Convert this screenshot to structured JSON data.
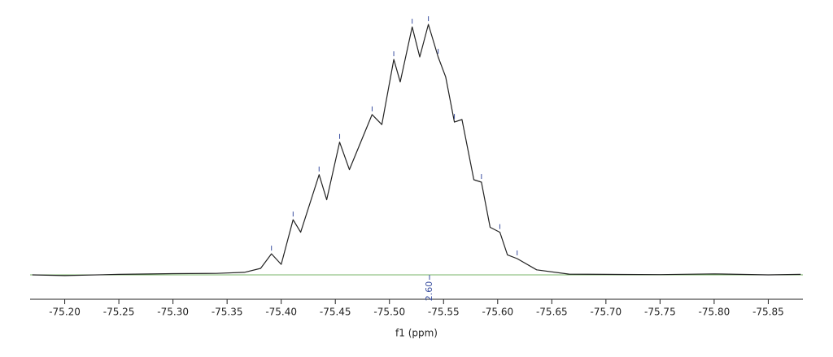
{
  "chart_data": {
    "type": "line",
    "x_label": "f1 (ppm)",
    "x": [
      -75.17,
      -75.2,
      -75.25,
      -75.3,
      -75.34,
      -75.366,
      -75.381,
      -75.391,
      -75.4,
      -75.411,
      -75.418,
      -75.435,
      -75.442,
      -75.454,
      -75.463,
      -75.484,
      -75.493,
      -75.504,
      -75.51,
      -75.521,
      -75.528,
      -75.536,
      -75.545,
      -75.552,
      -75.56,
      -75.567,
      -75.578,
      -75.585,
      -75.593,
      -75.602,
      -75.609,
      -75.618,
      -75.636,
      -75.666,
      -75.7,
      -75.75,
      -75.8,
      -75.85,
      -75.88
    ],
    "series": [
      {
        "name": "f1",
        "color": "#222222",
        "values": [
          0,
          -0.3,
          0.2,
          0.5,
          0.6,
          1,
          2.6,
          8.4,
          4.2,
          22,
          17,
          40,
          30,
          53,
          42,
          64,
          60,
          86,
          77,
          99,
          87,
          100,
          87,
          79,
          61,
          62,
          38,
          37,
          19,
          17,
          8,
          6.5,
          2,
          0.3,
          0.2,
          0.1,
          0.4,
          0,
          0.2
        ]
      }
    ],
    "peaks": [
      -75.391,
      -75.411,
      -75.435,
      -75.454,
      -75.484,
      -75.504,
      -75.521,
      -75.536,
      -75.545,
      -75.56,
      -75.585,
      -75.602,
      -75.618
    ],
    "integral_label": "2.60",
    "xlim": [
      -75.168,
      -75.882
    ],
    "ylim": [
      0,
      100
    ],
    "xticks": [
      {
        "value": -75.2,
        "label": "-75.20"
      },
      {
        "value": -75.25,
        "label": "-75.25"
      },
      {
        "value": -75.3,
        "label": "-75.30"
      },
      {
        "value": -75.35,
        "label": "-75.35"
      },
      {
        "value": -75.4,
        "label": "-75.40"
      },
      {
        "value": -75.45,
        "label": "-75.45"
      },
      {
        "value": -75.5,
        "label": "-75.50"
      },
      {
        "value": -75.55,
        "label": "-75.55"
      },
      {
        "value": -75.6,
        "label": "-75.60"
      },
      {
        "value": -75.65,
        "label": "-75.65"
      },
      {
        "value": -75.7,
        "label": "-75.70"
      },
      {
        "value": -75.75,
        "label": "-75.75"
      },
      {
        "value": -75.8,
        "label": "-75.80"
      },
      {
        "value": -75.85,
        "label": "-75.85"
      }
    ]
  }
}
